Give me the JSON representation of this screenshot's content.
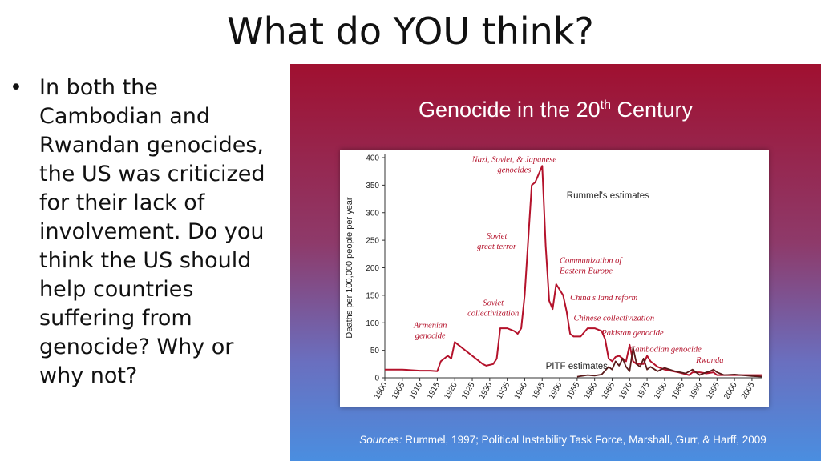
{
  "slide": {
    "title": "What do YOU think?",
    "bullet": "In both the Cambodian and Rwandan genocides, the US was criticized for their lack of involvement. Do you think the US should help countries suffering from genocide? Why or why not?"
  },
  "colors": {
    "rummel_line": "#b4122b",
    "pitf_line": "#5a1a1a",
    "panel_top": "#a01030",
    "panel_bottom": "#4a8ee0"
  },
  "chart_data": {
    "type": "line",
    "title_main": "Genocide in the 20",
    "title_sup": "th",
    "title_end": " Century",
    "ylabel": "Deaths per 100,000 people per year",
    "xlabel": "",
    "ylim": [
      0,
      400
    ],
    "xlim": [
      1900,
      2008
    ],
    "y_ticks": [
      0,
      50,
      100,
      150,
      200,
      250,
      300,
      350,
      400
    ],
    "x_ticks": [
      1900,
      1905,
      1910,
      1915,
      1920,
      1925,
      1930,
      1935,
      1940,
      1945,
      1950,
      1955,
      1960,
      1965,
      1970,
      1975,
      1980,
      1985,
      1990,
      1995,
      2000,
      2005
    ],
    "grid": false,
    "series": [
      {
        "name": "Rummel's estimates",
        "x": [
          1900,
          1905,
          1910,
          1913,
          1915,
          1916,
          1918,
          1919,
          1920,
          1922,
          1924,
          1926,
          1928,
          1929,
          1931,
          1932,
          1933,
          1935,
          1937,
          1938,
          1939,
          1940,
          1941,
          1942,
          1943,
          1944,
          1945,
          1946,
          1947,
          1948,
          1949,
          1950,
          1951,
          1952,
          1953,
          1954,
          1956,
          1958,
          1960,
          1962,
          1963,
          1964,
          1965,
          1966,
          1967,
          1968,
          1969,
          1970,
          1971,
          1972,
          1974,
          1975,
          1976,
          1978,
          1980,
          1984,
          1987,
          1988,
          1990,
          1992,
          1994,
          1995,
          1997,
          2000,
          2005,
          2008
        ],
        "y": [
          15,
          15,
          13,
          13,
          12,
          30,
          40,
          35,
          65,
          55,
          45,
          35,
          25,
          22,
          25,
          35,
          90,
          90,
          85,
          80,
          90,
          150,
          250,
          350,
          355,
          370,
          385,
          240,
          140,
          125,
          170,
          160,
          150,
          120,
          80,
          75,
          75,
          90,
          90,
          85,
          70,
          35,
          30,
          38,
          40,
          35,
          30,
          60,
          30,
          25,
          25,
          40,
          30,
          20,
          15,
          10,
          5,
          10,
          10,
          8,
          10,
          5,
          5,
          5,
          5,
          5
        ]
      },
      {
        "name": "PITF estimates",
        "x": [
          1955,
          1958,
          1960,
          1962,
          1964,
          1965,
          1966,
          1967,
          1968,
          1969,
          1970,
          1971,
          1972,
          1973,
          1974,
          1975,
          1976,
          1978,
          1980,
          1983,
          1986,
          1988,
          1990,
          1992,
          1993,
          1994,
          1995,
          1997,
          2000,
          2005,
          2008
        ],
        "y": [
          2,
          5,
          4,
          6,
          20,
          15,
          30,
          22,
          35,
          20,
          12,
          55,
          25,
          20,
          35,
          15,
          20,
          12,
          18,
          12,
          8,
          15,
          5,
          10,
          12,
          15,
          10,
          5,
          6,
          3,
          2
        ]
      }
    ],
    "series_labels": {
      "rummel": "Rummel's estimates",
      "pitf": "PITF estimates"
    },
    "annotations": [
      {
        "lines": [
          "Nazi, Soviet, & Japanese",
          "genocides"
        ]
      },
      {
        "lines": [
          "Soviet",
          "great terror"
        ]
      },
      {
        "lines": [
          "Communization of",
          "Eastern Europe"
        ]
      },
      {
        "lines": [
          "China's land reform"
        ]
      },
      {
        "lines": [
          "Soviet",
          "collectivization"
        ]
      },
      {
        "lines": [
          "Chinese collectivization"
        ]
      },
      {
        "lines": [
          "Armenian",
          "genocide"
        ]
      },
      {
        "lines": [
          "Pakistan genocide"
        ]
      },
      {
        "lines": [
          "Cambodian genocide"
        ]
      },
      {
        "lines": [
          "Rwanda"
        ]
      }
    ],
    "sources_label": "Sources:",
    "sources_text": " Rummel, 1997; Political Instability Task Force, Marshall, Gurr, & Harff, 2009"
  }
}
